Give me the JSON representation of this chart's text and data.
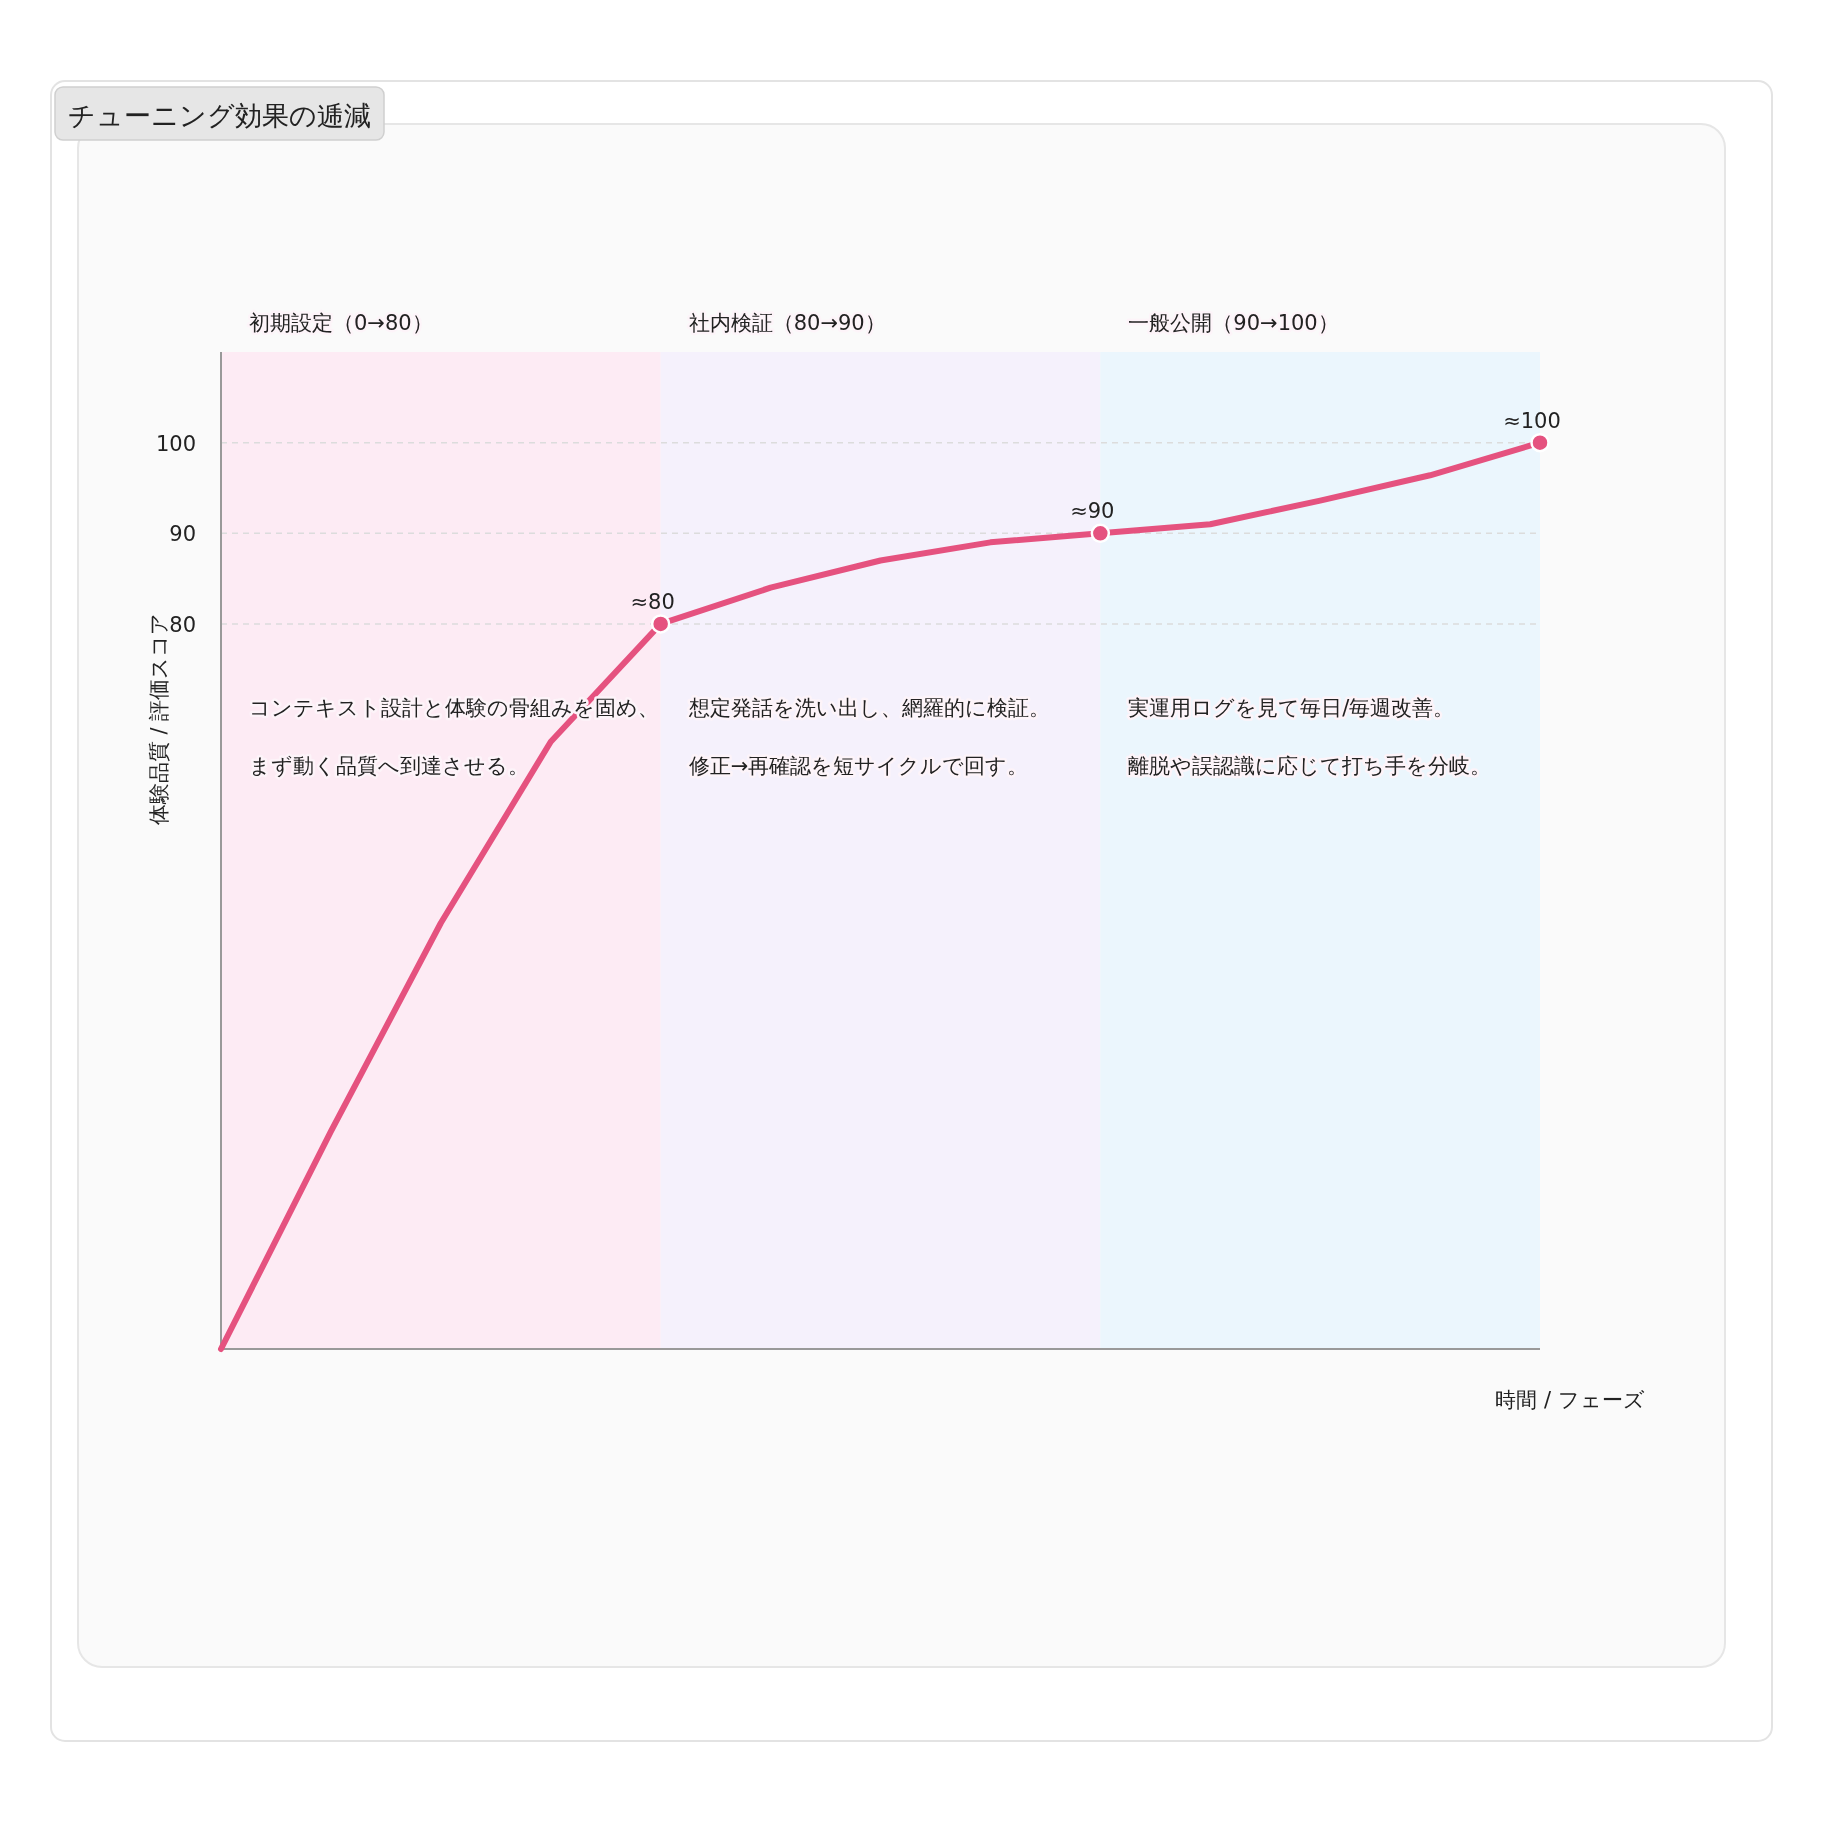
{
  "chart_data": {
    "type": "line",
    "title": "チューニング効果の逓減",
    "xlabel": "時間 / フェーズ",
    "ylabel": "体験品質 / 評価スコア",
    "categories": [
      null,
      null,
      null,
      null,
      null,
      null,
      null,
      null,
      null,
      null,
      null,
      null,
      null
    ],
    "ylim": [
      0,
      110
    ],
    "yticks": [
      80,
      90,
      100
    ],
    "grid": "y",
    "tick_labels": "y",
    "series": [
      {
        "color": "#e5527f",
        "values": [
          0,
          24,
          47,
          67,
          80,
          84,
          87,
          89,
          90,
          91,
          93.6,
          96.4,
          100
        ],
        "value_labels": [
          null,
          null,
          null,
          null,
          "≈80",
          null,
          null,
          null,
          "≈90",
          null,
          null,
          null,
          "≈100"
        ]
      }
    ],
    "annotations": [
      "初期設定（0→80）",
      "社内検証（80→90）",
      "一般公開（90→100）",
      "コンテキスト設計と体験の骨組みを固め、",
      "まず動く品質へ到達させる。",
      "想定発話を洗い出し、網羅的に検証。",
      "修正→再確認を短サイクルで回す。",
      "実運用ログを見て毎日/毎週改善。",
      "離脱や誤認識に応じて打ち手を分岐。"
    ]
  }
}
